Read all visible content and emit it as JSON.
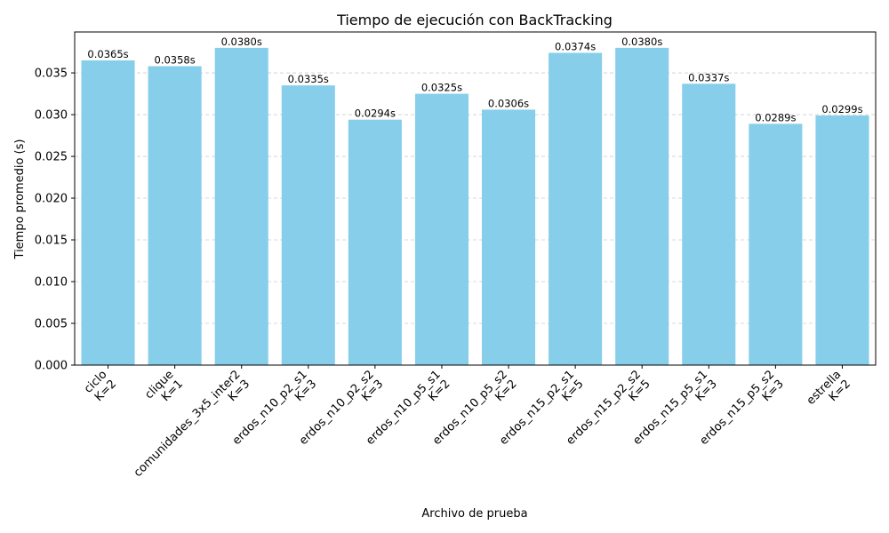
{
  "chart_data": {
    "type": "bar",
    "title": "Tiempo de ejecución con BackTracking",
    "xlabel": "Archivo de prueba",
    "ylabel": "Tiempo promedio (s)",
    "categories": [
      [
        "ciclo",
        "K=2"
      ],
      [
        "clique",
        "K=1"
      ],
      [
        "comunidades_3x5_inter2",
        "K=3"
      ],
      [
        "erdos_n10_p2_s1",
        "K=3"
      ],
      [
        "erdos_n10_p2_s2",
        "K=3"
      ],
      [
        "erdos_n10_p5_s1",
        "K=2"
      ],
      [
        "erdos_n10_p5_s2",
        "K=2"
      ],
      [
        "erdos_n15_p2_s1",
        "K=5"
      ],
      [
        "erdos_n15_p2_s2",
        "K=5"
      ],
      [
        "erdos_n15_p5_s1",
        "K=3"
      ],
      [
        "erdos_n15_p5_s2",
        "K=3"
      ],
      [
        "estrella",
        "K=2"
      ]
    ],
    "values": [
      0.0365,
      0.0358,
      0.038,
      0.0335,
      0.0294,
      0.0325,
      0.0306,
      0.0374,
      0.038,
      0.0337,
      0.0289,
      0.0299
    ],
    "value_labels": [
      "0.0365s",
      "0.0358s",
      "0.0380s",
      "0.0335s",
      "0.0294s",
      "0.0325s",
      "0.0306s",
      "0.0374s",
      "0.0380s",
      "0.0337s",
      "0.0289s",
      "0.0299s"
    ],
    "yticks": [
      "0.000",
      "0.005",
      "0.010",
      "0.015",
      "0.020",
      "0.025",
      "0.030",
      "0.035"
    ],
    "ytick_values": [
      0,
      0.005,
      0.01,
      0.015,
      0.02,
      0.025,
      0.03,
      0.035
    ],
    "ylim": [
      0,
      0.0399
    ],
    "grid": "y, dashed",
    "bar_color": "#87CEEB",
    "grid_color": "#cccccc"
  }
}
